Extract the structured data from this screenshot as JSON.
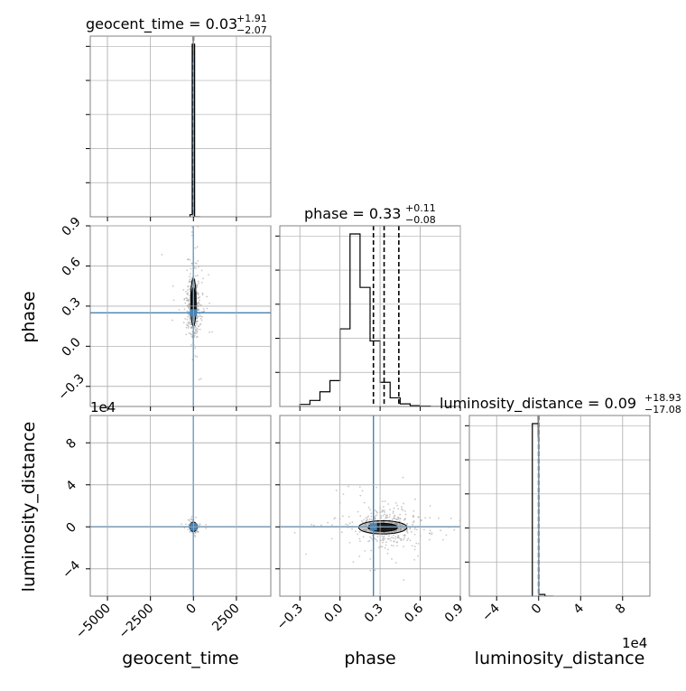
{
  "chart_data": {
    "type": "corner",
    "parameters": [
      "geocent_time",
      "phase",
      "luminosity_distance"
    ],
    "truth": {
      "geocent_time": 0,
      "phase": 0.25,
      "luminosity_distance": 0
    },
    "colors": {
      "truth": "#4682b4",
      "hist": "#000000",
      "grid": "#b0b0b0",
      "samples": "#9a9a9a",
      "frame": "#808080"
    },
    "grid": true,
    "titles": [
      {
        "param": "geocent_time",
        "main": "geocent_time = 0.03",
        "plus": "+1.91",
        "minus": "−2.07"
      },
      {
        "param": "phase",
        "main": "phase = 0.33",
        "plus": "+0.11",
        "minus": "−0.08"
      },
      {
        "param": "luminosity_distance",
        "main": "luminosity_distance = 0.09",
        "plus": "+18.93",
        "minus": "−17.08"
      }
    ],
    "axis_labels": {
      "geocent_time": "geocent_time",
      "phase": "phase",
      "luminosity_distance": "luminosity_distance"
    },
    "ranges": {
      "geocent_time": [
        -6000,
        4500
      ],
      "phase": [
        -0.45,
        0.9
      ],
      "luminosity_distance_e4": [
        -6.6,
        10.6
      ]
    },
    "ticks": {
      "geocent_time": {
        "values": [
          -5000,
          -2500,
          0,
          2500
        ],
        "labels": [
          "−5000",
          "−2500",
          "0",
          "2500"
        ]
      },
      "phase": {
        "values": [
          -0.3,
          0.0,
          0.3,
          0.6,
          0.9
        ],
        "labels": [
          "−0.3",
          "0.0",
          "0.3",
          "0.6",
          "0.9"
        ]
      },
      "luminosity_distance_e4": {
        "values": [
          -4,
          0,
          4,
          8
        ],
        "labels": [
          "−4",
          "0",
          "4",
          "8"
        ]
      }
    },
    "offset_text": "1e4",
    "diagonal": {
      "geocent_time": {
        "bins": [
          -200,
          -70,
          70,
          400
        ],
        "counts": [
          0.012,
          1.0,
          0
        ],
        "quantiles": [
          -2.04,
          0.03,
          1.94
        ],
        "peak_marker": -10
      },
      "phase": {
        "bins": [
          -0.3,
          -0.225,
          -0.15,
          -0.075,
          0.0,
          0.075,
          0.15,
          0.225,
          0.3,
          0.375,
          0.45,
          0.525,
          0.6,
          0.675,
          0.75,
          0.825,
          0.9
        ],
        "counts": [
          0.012,
          0.035,
          0.085,
          0.15,
          0.45,
          1.0,
          0.69,
          0.38,
          0.14,
          0.05,
          0.015,
          0.005,
          0.002,
          0,
          0,
          0
        ],
        "quantiles": [
          0.25,
          0.33,
          0.44
        ]
      },
      "luminosity_distance_e4": {
        "bins": [
          -0.6,
          0.0,
          0.6,
          1.4
        ],
        "counts": [
          1.0,
          0.01,
          0
        ],
        "quantiles": [
          -0.0017,
          0.0,
          0.0019
        ],
        "peak_marker": -0.05
      }
    },
    "pairs": [
      {
        "x": "geocent_time",
        "y": "phase",
        "contour": {
          "cx": 0,
          "cy": 0.33,
          "sx": 60,
          "sy": 0.1
        },
        "scatter": {
          "cx": 0,
          "cy": 0.3,
          "sx": 180,
          "sy": 0.12,
          "n": 420
        }
      },
      {
        "x": "geocent_time",
        "y": "luminosity_distance_e4",
        "contour": {
          "cx": 0,
          "cy": 0,
          "sx": 120,
          "sy": 0.25
        },
        "scatter": {
          "cx": 0,
          "cy": 0,
          "sx": 120,
          "sy": 0.2,
          "n": 180
        }
      },
      {
        "x": "phase",
        "y": "luminosity_distance_e4",
        "contour": {
          "cx": 0.32,
          "cy": -0.05,
          "sx": 0.1,
          "sy": 0.35
        },
        "scatter": {
          "cx": 0.36,
          "cy": 0.05,
          "sx": 0.12,
          "sy": 0.9,
          "n": 380
        }
      }
    ]
  }
}
